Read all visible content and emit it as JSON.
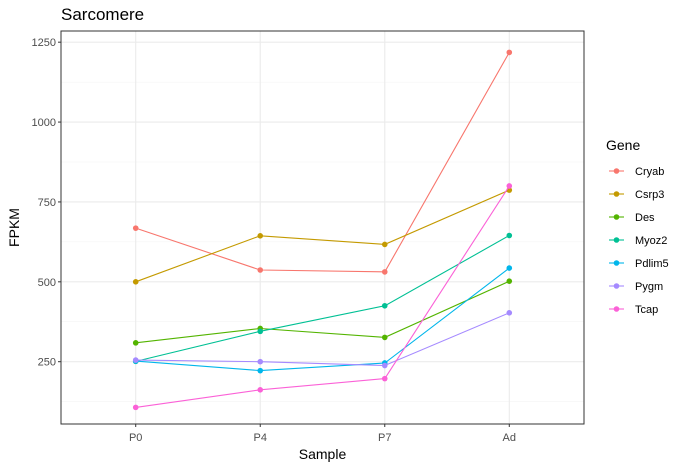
{
  "chart_data": {
    "type": "line",
    "title": "Sarcomere",
    "xlabel": "Sample",
    "ylabel": "FPKM",
    "categories": [
      "P0",
      "P4",
      "P7",
      "Ad"
    ],
    "ylim": [
      55,
      1285
    ],
    "yticks": [
      250,
      500,
      750,
      1000,
      1250
    ],
    "ytick_labels": [
      "250",
      "500",
      "750",
      "1000",
      "1250"
    ],
    "grid": true,
    "legend": {
      "title": "Gene",
      "placement": "right"
    },
    "series": [
      {
        "name": "Cryab",
        "color": "#F8766D",
        "values": [
          668,
          537,
          531,
          1218
        ]
      },
      {
        "name": "Csrp3",
        "color": "#C49A00",
        "values": [
          500,
          644,
          617,
          787
        ]
      },
      {
        "name": "Des",
        "color": "#53B400",
        "values": [
          309,
          354,
          326,
          502
        ]
      },
      {
        "name": "Myoz2",
        "color": "#00C094",
        "values": [
          251,
          345,
          425,
          645
        ]
      },
      {
        "name": "Pdlim5",
        "color": "#00B6EB",
        "values": [
          252,
          222,
          246,
          543
        ]
      },
      {
        "name": "Pygm",
        "color": "#A58AFF",
        "values": [
          255,
          250,
          238,
          403
        ]
      },
      {
        "name": "Tcap",
        "color": "#FB61D7",
        "values": [
          107,
          162,
          197,
          800
        ]
      }
    ]
  }
}
